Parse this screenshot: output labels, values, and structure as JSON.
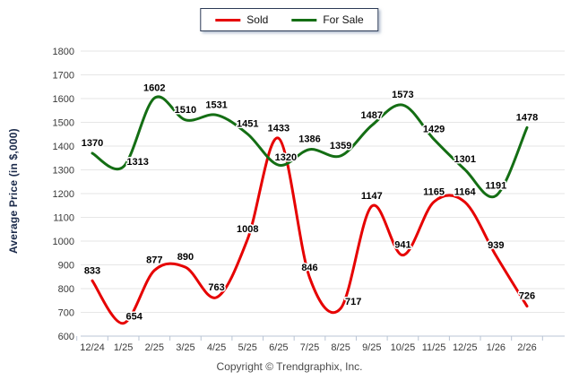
{
  "chart_data": {
    "type": "line",
    "title": "",
    "categories": [
      "12/24",
      "1/25",
      "2/25",
      "3/25",
      "4/25",
      "5/25",
      "6/25",
      "7/25",
      "8/25",
      "9/25",
      "10/25",
      "11/25",
      "12/25",
      "1/26",
      "2/26"
    ],
    "series": [
      {
        "name": "Sold",
        "color": "#e60000",
        "values": [
          833,
          654,
          877,
          890,
          763,
          1008,
          1433,
          846,
          717,
          1147,
          941,
          1165,
          1164,
          939,
          726
        ]
      },
      {
        "name": "For Sale",
        "color": "#146e14",
        "values": [
          1370,
          1313,
          1602,
          1510,
          1531,
          1451,
          1320,
          1386,
          1359,
          1487,
          1573,
          1429,
          1301,
          1191,
          1478
        ]
      }
    ],
    "xlabel": "",
    "ylabel": "Average Price (in $,000)",
    "ylim": [
      600,
      1800
    ],
    "ytick_step": 100,
    "grid": true,
    "legend_position": "top-center",
    "show_point_labels": true
  },
  "footer": {
    "copyright": "Copyright © Trendgraphix, Inc."
  },
  "colors": {
    "grid": "#e6e6e6",
    "axis": "#b9c4d4",
    "tick_label": "#3a3a3a",
    "axis_title": "#1b2a4a",
    "point_label": "#000000",
    "point_label_halo": "#ffffff",
    "legend_border": "#2b3a55",
    "sold": "#e60000",
    "for_sale": "#146e14"
  }
}
